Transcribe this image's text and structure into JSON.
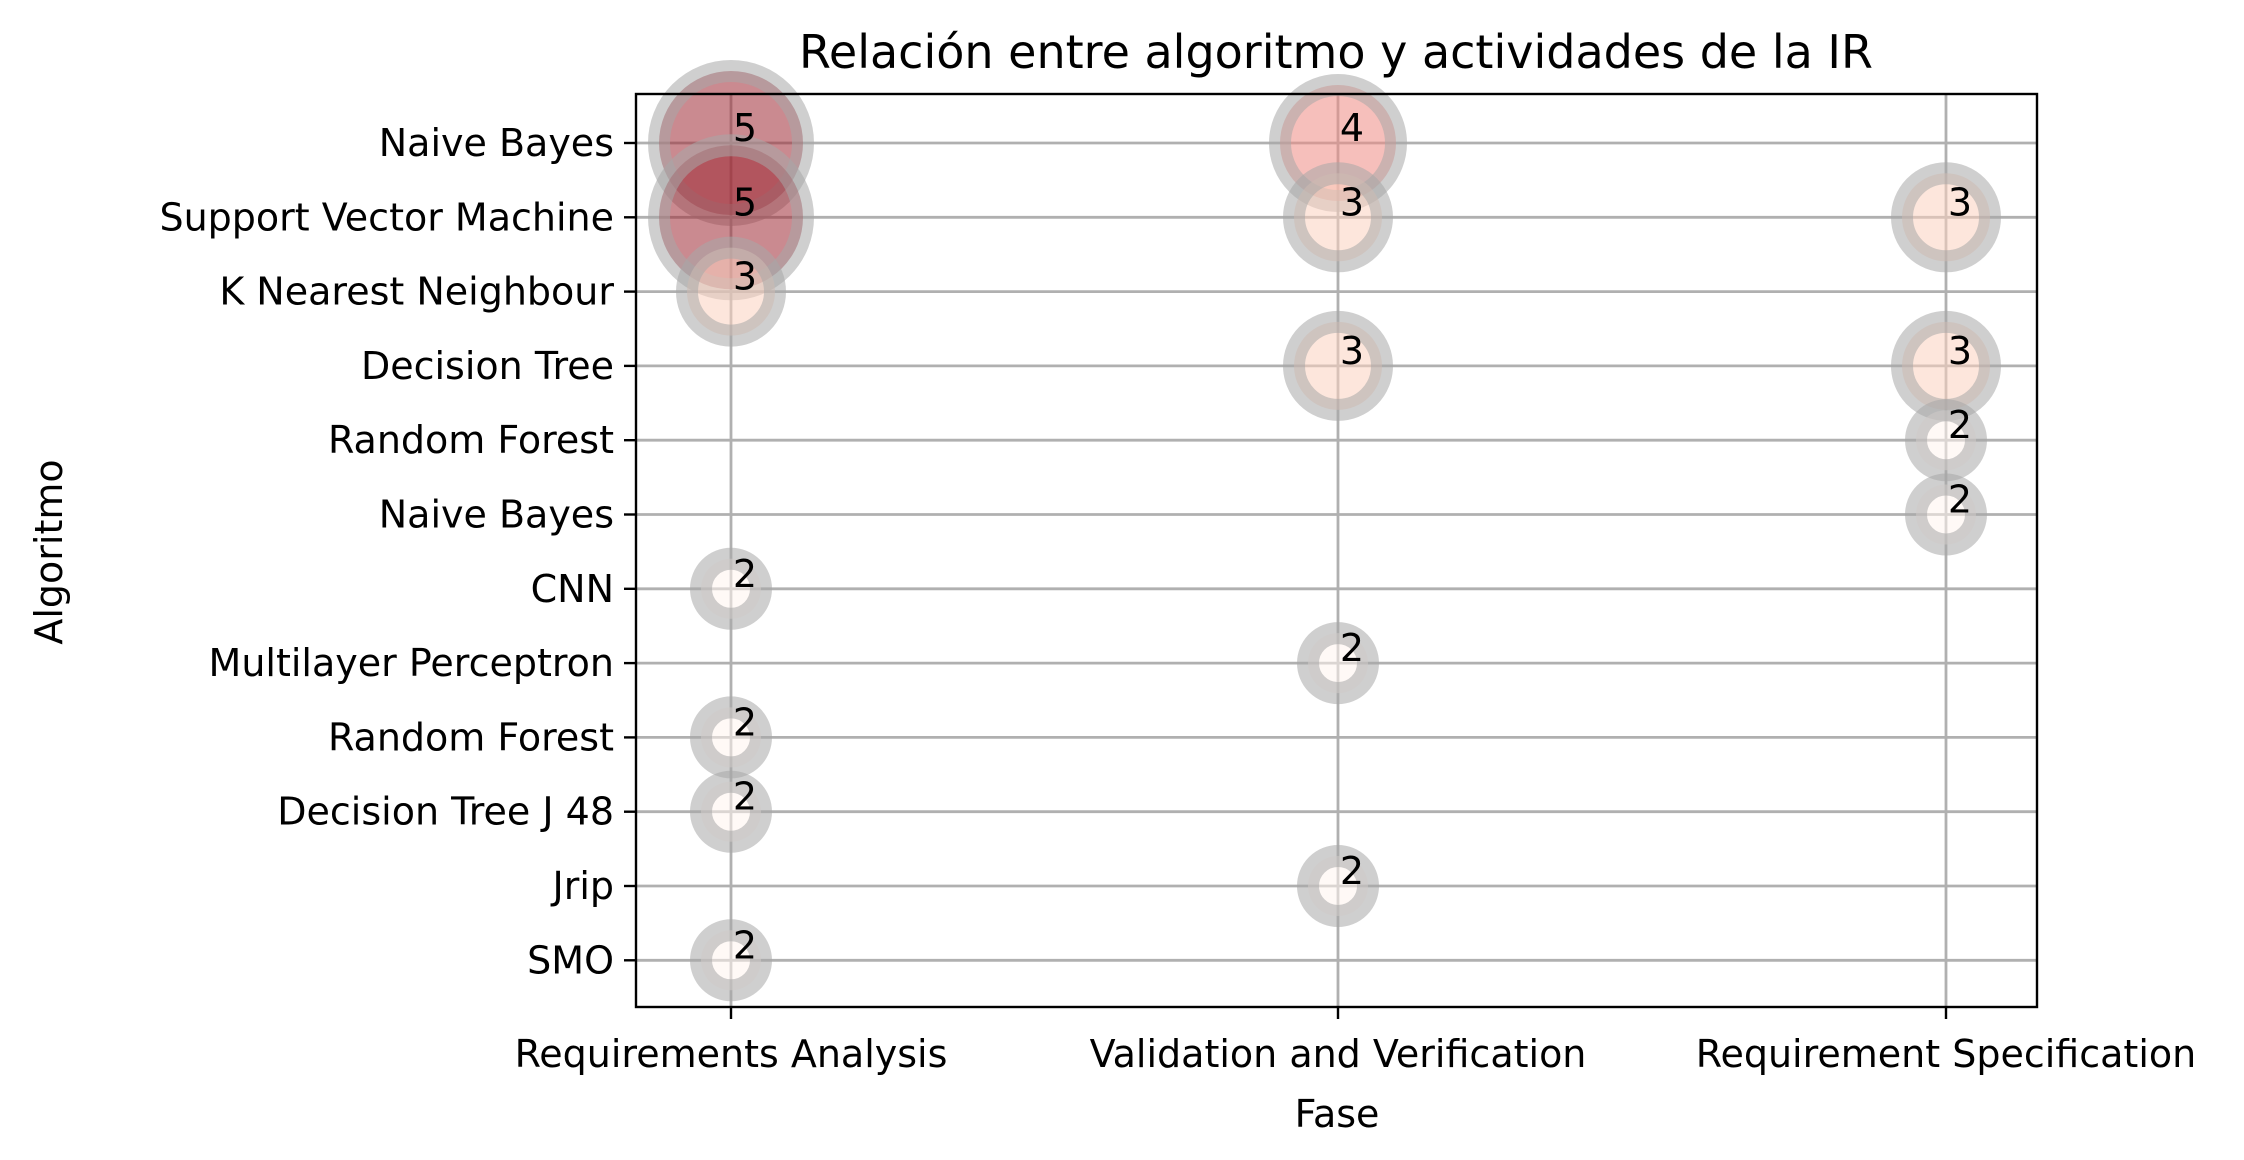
{
  "chart_data": {
    "type": "scatter",
    "title": "Relación entre algoritmo y actividades de la IR",
    "xlabel": "Fase",
    "ylabel": "Algoritmo",
    "x_categories": [
      "Requirements Analysis",
      "Validation and Verification",
      "Requirement Specification"
    ],
    "y_categories": [
      "Naive Bayes",
      "Support Vector Machine ",
      "K Nearest Neighbour",
      "Decision Tree",
      "Random Forest ",
      "Naive Bayes ",
      "CNN",
      "Multilayer Perceptron",
      "Random Forest",
      "Decision Tree J 48",
      "Jrip",
      "SMO"
    ],
    "grid": true,
    "points": [
      {
        "x": "Requirements Analysis",
        "y": "Naive Bayes",
        "value": 5
      },
      {
        "x": "Requirements Analysis",
        "y": "Support Vector Machine ",
        "value": 5
      },
      {
        "x": "Requirements Analysis",
        "y": "K Nearest Neighbour",
        "value": 3
      },
      {
        "x": "Requirements Analysis",
        "y": "CNN",
        "value": 2
      },
      {
        "x": "Requirements Analysis",
        "y": "Random Forest",
        "value": 2
      },
      {
        "x": "Requirements Analysis",
        "y": "Decision Tree J 48",
        "value": 2
      },
      {
        "x": "Requirements Analysis",
        "y": "SMO",
        "value": 2
      },
      {
        "x": "Validation and Verification",
        "y": "Naive Bayes",
        "value": 4
      },
      {
        "x": "Validation and Verification",
        "y": "Support Vector Machine ",
        "value": 3
      },
      {
        "x": "Validation and Verification",
        "y": "Decision Tree",
        "value": 3
      },
      {
        "x": "Validation and Verification",
        "y": "Multilayer Perceptron",
        "value": 2
      },
      {
        "x": "Validation and Verification",
        "y": "Jrip",
        "value": 2
      },
      {
        "x": "Requirement Specification",
        "y": "Support Vector Machine ",
        "value": 3
      },
      {
        "x": "Requirement Specification",
        "y": "Decision Tree",
        "value": 3
      },
      {
        "x": "Requirement Specification",
        "y": "Random Forest ",
        "value": 2
      },
      {
        "x": "Requirement Specification",
        "y": "Naive Bayes ",
        "value": 2
      }
    ],
    "colors": {
      "5": "#9e2a35",
      "4": "#ee8a84",
      "3": "#fcd1bf",
      "2": "#fff4ef",
      "ring": "#a8a8a8"
    }
  }
}
